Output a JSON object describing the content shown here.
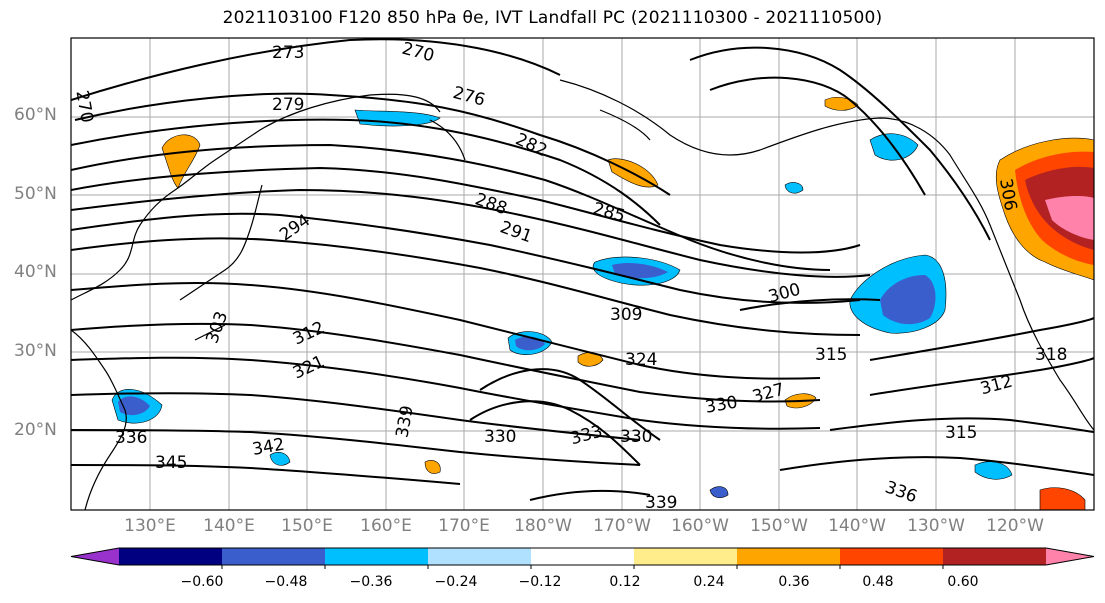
{
  "title": "2021103100 F120 850 hPa θe, IVT Landfall PC (2021110300 - 2021110500)",
  "map": {
    "lat_labels": [
      "60°N",
      "50°N",
      "40°N",
      "30°N",
      "20°N"
    ],
    "lon_labels": [
      "130°E",
      "140°E",
      "150°E",
      "160°E",
      "170°E",
      "180°W",
      "170°W",
      "160°W",
      "150°W",
      "140°W",
      "130°W",
      "120°W"
    ],
    "contour_labels": [
      {
        "text": "273"
      },
      {
        "text": "270"
      },
      {
        "text": "276"
      },
      {
        "text": "279"
      },
      {
        "text": "282"
      },
      {
        "text": "285"
      },
      {
        "text": "288"
      },
      {
        "text": "291"
      },
      {
        "text": "294"
      },
      {
        "text": "300"
      },
      {
        "text": "309"
      },
      {
        "text": "312"
      },
      {
        "text": "321"
      },
      {
        "text": "324"
      },
      {
        "text": "315"
      },
      {
        "text": "312"
      },
      {
        "text": "330"
      },
      {
        "text": "327"
      },
      {
        "text": "336"
      },
      {
        "text": "342"
      },
      {
        "text": "345"
      },
      {
        "text": "339"
      },
      {
        "text": "330"
      },
      {
        "text": "333"
      },
      {
        "text": "330"
      },
      {
        "text": "315"
      },
      {
        "text": "336"
      },
      {
        "text": "270"
      },
      {
        "text": "306"
      },
      {
        "text": "303"
      },
      {
        "text": "318"
      },
      {
        "text": "339"
      }
    ]
  },
  "colorbar": {
    "colors": [
      "#9932cc",
      "#000080",
      "#3a5fcd",
      "#00bfff",
      "#b0e2ff",
      "#ffffff",
      "#ffec8b",
      "#ffa500",
      "#ff4500",
      "#b22222",
      "#ff82ab"
    ],
    "ticks": [
      "−0.60",
      "−0.48",
      "−0.36",
      "−0.24",
      "−0.12",
      "0.12",
      "0.24",
      "0.36",
      "0.48",
      "0.60"
    ]
  }
}
